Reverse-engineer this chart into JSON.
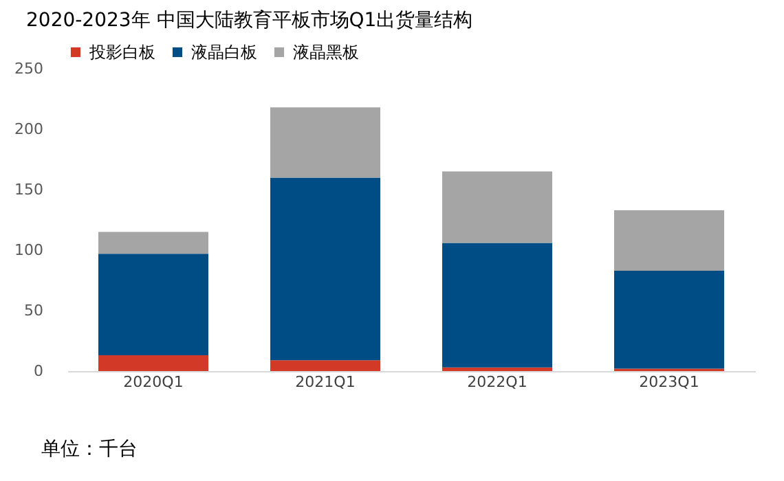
{
  "chart_data": {
    "type": "bar",
    "title": "2020-2023年 中国大陆教育平板市场Q1出货量结构",
    "categories": [
      "2020Q1",
      "2021Q1",
      "2022Q1",
      "2023Q1"
    ],
    "stacked": true,
    "series": [
      {
        "name": "投影白板",
        "color": "#d23a27",
        "values": [
          13,
          9,
          3,
          2
        ]
      },
      {
        "name": "液晶白板",
        "color": "#004c84",
        "values": [
          84,
          151,
          103,
          81
        ]
      },
      {
        "name": "液晶黑板",
        "color": "#a5a5a5",
        "values": [
          18,
          58,
          59,
          50
        ]
      }
    ],
    "ylim": [
      0,
      250
    ],
    "yticks": [
      0,
      50,
      100,
      150,
      200,
      250
    ],
    "grid": false,
    "legend": "top",
    "annotations": [
      "单位：千台"
    ]
  }
}
